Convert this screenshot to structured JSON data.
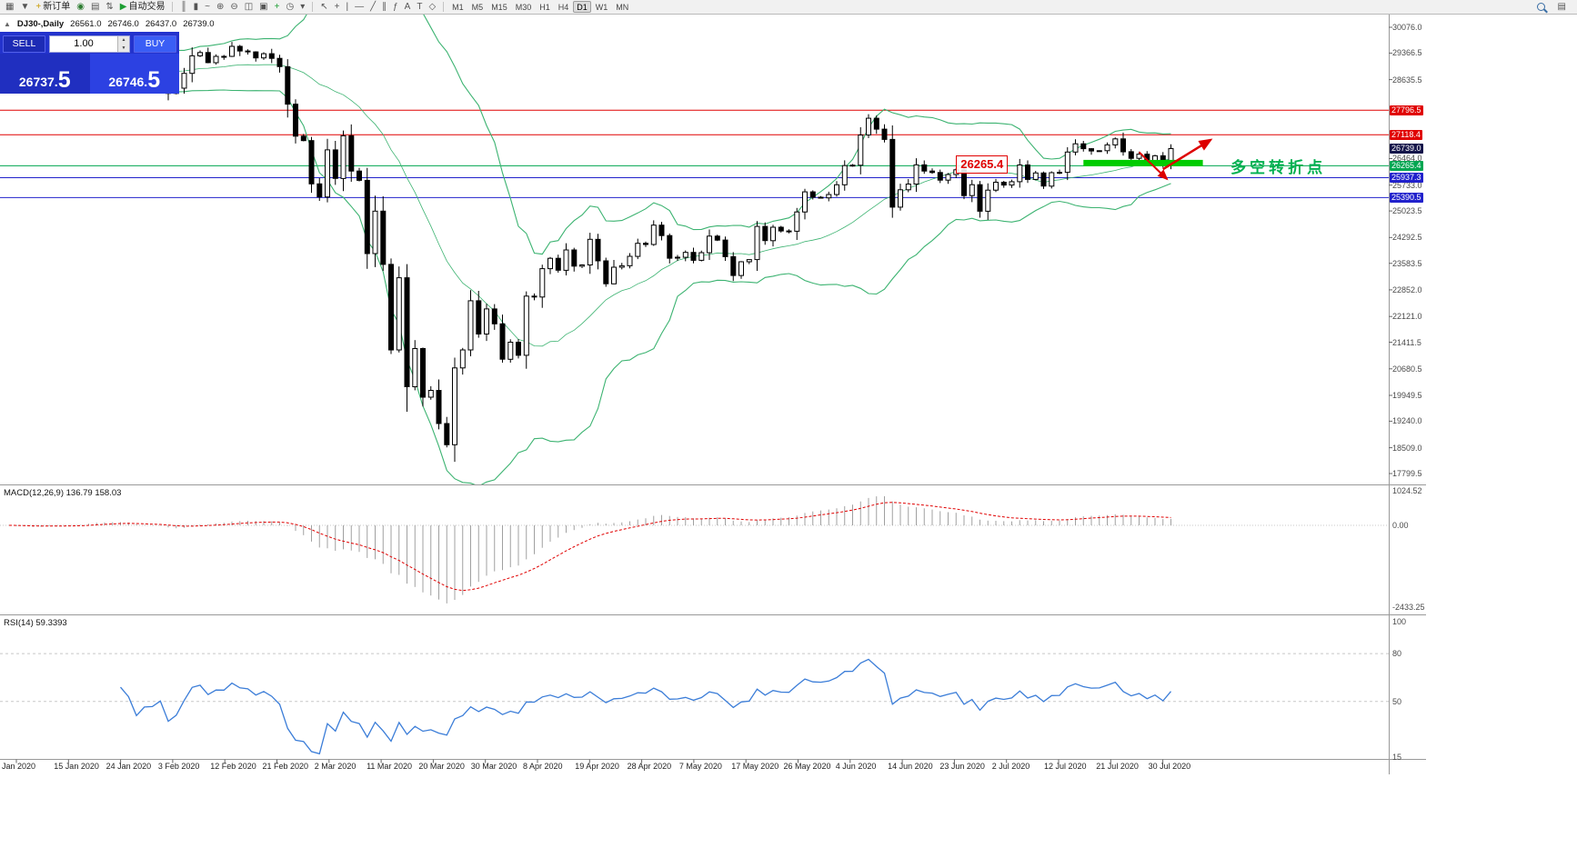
{
  "toolbar": {
    "left_icons": [
      {
        "name": "new-chart-icon",
        "glyph": "▦"
      },
      {
        "name": "profiles-icon",
        "glyph": "▼"
      }
    ],
    "new_order": {
      "label": "新订单",
      "icon_glyph": "+",
      "icon_color": "#c99a00"
    },
    "mid_icons": [
      {
        "name": "market-watch-icon",
        "glyph": "◉",
        "color": "#2e7d32"
      },
      {
        "name": "data-window-icon",
        "glyph": "▤"
      },
      {
        "name": "navigator-icon",
        "glyph": "⇅"
      }
    ],
    "autotrade": {
      "label": "自动交易",
      "icon_glyph": "▶",
      "icon_color": "#1d9e33"
    },
    "chart_tool_icons": [
      {
        "name": "bar-chart-type-icon",
        "glyph": "║"
      },
      {
        "name": "candlestick-chart-type-icon",
        "glyph": "▮"
      },
      {
        "name": "line-chart-type-icon",
        "glyph": "~"
      },
      {
        "name": "zoom-in-icon",
        "glyph": "⊕"
      },
      {
        "name": "zoom-out-icon",
        "glyph": "⊖"
      },
      {
        "name": "tile-windows-icon",
        "glyph": "◫"
      },
      {
        "name": "cascade-windows-icon",
        "glyph": "▣"
      },
      {
        "name": "indicators-add-icon",
        "glyph": "+",
        "color": "#1d9e33"
      },
      {
        "name": "periods-icon",
        "glyph": "◷"
      },
      {
        "name": "templates-icon",
        "glyph": "▾"
      }
    ],
    "drawing_icons": [
      {
        "name": "cursor-icon",
        "glyph": "↖"
      },
      {
        "name": "crosshair-icon",
        "glyph": "+"
      },
      {
        "name": "vertical-line-icon",
        "glyph": "|"
      },
      {
        "name": "horizontal-line-icon",
        "glyph": "—"
      },
      {
        "name": "trendline-icon",
        "glyph": "╱"
      },
      {
        "name": "channel-icon",
        "glyph": "∥"
      },
      {
        "name": "fibonacci-icon",
        "glyph": "ƒ"
      },
      {
        "name": "text-icon",
        "glyph": "A"
      },
      {
        "name": "label-icon",
        "glyph": "T"
      },
      {
        "name": "shapes-icon",
        "glyph": "◇"
      }
    ],
    "timeframes": [
      "M1",
      "M5",
      "M15",
      "M30",
      "H1",
      "H4",
      "D1",
      "W1",
      "MN"
    ],
    "active_timeframe": "D1",
    "right_icons": [
      {
        "name": "search-icon",
        "css": "magnifier",
        "glyph": ""
      },
      {
        "name": "community-icon",
        "glyph": "▤"
      }
    ]
  },
  "info_line": {
    "collapse_glyph": "▲",
    "symbol": "DJ30-,Daily",
    "open": "26561.0",
    "high": "26746.0",
    "low": "26437.0",
    "close": "26739.0"
  },
  "order_panel": {
    "sell_label": "SELL",
    "buy_label": "BUY",
    "volume": "1.00",
    "spin_up_glyph": "▲",
    "spin_down_glyph": "▼",
    "sell_price_small": "26737.",
    "sell_price_big": "5",
    "buy_price_small": "26746.",
    "buy_price_big": "5"
  },
  "annotations": {
    "price_callout": {
      "text": "26265.4",
      "index": 119,
      "price": 26290
    },
    "support_zone": {
      "start_index": 135,
      "end_index": 150,
      "price": 26340,
      "color": "#00cc00"
    },
    "arrow_up": {
      "from": {
        "index": 145,
        "price": 26170
      },
      "to": {
        "index": 151,
        "price": 26980
      },
      "color": "#dd0000"
    },
    "arrow_down": {
      "from": {
        "index": 142,
        "price": 26640
      },
      "to": {
        "index": 145.5,
        "price": 25900
      },
      "color": "#dd0000"
    },
    "turning_point": {
      "text": "多空转折点",
      "index": 153.5,
      "price": 26320,
      "color": "#00b050"
    }
  },
  "price_axis": {
    "ticks": [
      "30076.0",
      "29366.5",
      "28635.5",
      "26464.0",
      "25733.0",
      "25023.5",
      "24292.5",
      "23583.5",
      "22852.0",
      "22121.0",
      "21411.5",
      "20680.5",
      "19949.5",
      "19240.0",
      "18509.0",
      "17799.5"
    ],
    "badges": [
      {
        "name": "resistance-badge-1",
        "value": "27796.5",
        "color": "#e00000"
      },
      {
        "name": "resistance-badge-2",
        "value": "27118.4",
        "color": "#e00000"
      },
      {
        "name": "current-price-badge",
        "value": "26739.0",
        "color": "#15154a"
      },
      {
        "name": "pivot-badge",
        "value": "26265.4",
        "color": "#00a651"
      },
      {
        "name": "support-badge-1",
        "value": "25937.3",
        "color": "#2222cc"
      },
      {
        "name": "support-badge-2",
        "value": "25390.5",
        "color": "#2222cc"
      }
    ]
  },
  "macd_panel": {
    "label": "MACD(12,26,9)",
    "values": "136.79 158.03",
    "axis_labels": [
      "1024.52",
      "0.00",
      "-2433.25"
    ]
  },
  "rsi_panel": {
    "label": "RSI(14)",
    "value": "59.3393",
    "axis_labels": [
      "100",
      "80",
      "50",
      "15"
    ],
    "levels": [
      80,
      50
    ]
  },
  "date_axis": {
    "labels": [
      "Jan 2020",
      "15 Jan 2020",
      "24 Jan 2020",
      "3 Feb 2020",
      "12 Feb 2020",
      "21 Feb 2020",
      "2 Mar 2020",
      "11 Mar 2020",
      "20 Mar 2020",
      "30 Mar 2020",
      "8 Apr 2020",
      "19 Apr 2020",
      "28 Apr 2020",
      "7 May 2020",
      "17 May 2020",
      "26 May 2020",
      "4 Jun 2020",
      "14 Jun 2020",
      "23 Jun 2020",
      "2 Jul 2020",
      "12 Jul 2020",
      "21 Jul 2020",
      "30 Jul 2020"
    ]
  },
  "colors": {
    "bollinger": "#3cb371",
    "candle_up": "#ffffff",
    "candle_down": "#000000",
    "candle_border": "#000000",
    "macd_hist": "#a0a0a0",
    "macd_signal": "#e00000",
    "rsi_line": "#3b7dd8",
    "level_dashed": "#c8c8c8",
    "frame": "#999999"
  },
  "chart_data": {
    "type": "candlestick",
    "symbol": "DJ30-",
    "timeframe": "Daily",
    "ohlc_current": {
      "open": 26561.0,
      "high": 26746.0,
      "low": 26437.0,
      "close": 26739.0
    },
    "y_axis": {
      "min": 17799.5,
      "max": 30076.0
    },
    "current_price": 26739.0,
    "price_levels": [
      {
        "value": 27796.5,
        "color": "#e00000"
      },
      {
        "value": 27118.4,
        "color": "#e00000"
      },
      {
        "value": 26265.4,
        "color": "#00a651"
      },
      {
        "value": 25937.3,
        "color": "#2222cc"
      },
      {
        "value": 25390.5,
        "color": "#2222cc"
      }
    ],
    "bollinger": {
      "period": 20,
      "deviation": 2
    },
    "macd": {
      "fast": 12,
      "slow": 26,
      "signal": 9,
      "current_macd": 136.79,
      "current_signal": 158.03,
      "axis_max": 1024.52,
      "axis_min": -2433.25
    },
    "rsi": {
      "period": 14,
      "current": 59.3393
    },
    "closes": [
      28869,
      28635,
      28704,
      28584,
      28745,
      28957,
      28824,
      28907,
      28939,
      29030,
      29298,
      29348,
      29196,
      29186,
      29160,
      28990,
      28536,
      28723,
      28734,
      28859,
      28256,
      28400,
      28808,
      29291,
      29380,
      29103,
      29277,
      29276,
      29551,
      29423,
      29398,
      29232,
      29348,
      29220,
      28992,
      27961,
      27081,
      26958,
      25767,
      25409,
      26703,
      25917,
      27091,
      26121,
      25865,
      23851,
      25018,
      23553,
      21200,
      23186,
      20188,
      21237,
      19899,
      20087,
      19174,
      18592,
      20705,
      21200,
      22552,
      21637,
      22327,
      21917,
      20944,
      21413,
      21053,
      22680,
      22654,
      23434,
      23719,
      23391,
      23950,
      23504,
      23538,
      24242,
      23650,
      23019,
      23476,
      23515,
      23775,
      24134,
      24102,
      24634,
      24346,
      23724,
      23749,
      23883,
      23665,
      23876,
      24331,
      24222,
      23765,
      23248,
      23625,
      23685,
      24597,
      24206,
      24576,
      24474,
      24465,
      24995,
      25548,
      25401,
      25383,
      25475,
      25743,
      26270,
      26282,
      27111,
      27572,
      27272,
      26990,
      25128,
      25605,
      25763,
      26290,
      26120,
      26080,
      25871,
      26025,
      26156,
      25446,
      25746,
      25016,
      25596,
      25813,
      25735,
      25827,
      26287,
      25890,
      26067,
      25706,
      26075,
      26086,
      26643,
      26870,
      26735,
      26672,
      26681,
      26840,
      27006,
      26652,
      26470,
      26585,
      26379,
      26540,
      26313,
      26739
    ]
  }
}
